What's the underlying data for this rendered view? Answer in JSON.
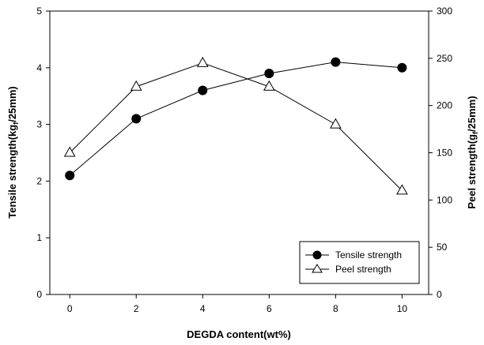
{
  "chart_data": {
    "type": "line",
    "xlabel": "DEGDA content(wt%)",
    "ylabel_left": {
      "main": "Tensile strength(kg",
      "sub": "f",
      "tail": "/25mm)"
    },
    "ylabel_right": {
      "main": "Peel strength(g",
      "sub": "f",
      "tail": "/25mm)"
    },
    "x_ticks": [
      0,
      2,
      4,
      6,
      8,
      10
    ],
    "y_left_ticks": [
      0,
      1,
      2,
      3,
      4,
      5
    ],
    "y_right_ticks": [
      0,
      50,
      100,
      150,
      200,
      250,
      300
    ],
    "xlim": [
      -0.6,
      10.8
    ],
    "ylim_left": [
      0,
      5
    ],
    "ylim_right": [
      0,
      300
    ],
    "grid": false,
    "legend_position": "bottom-right",
    "series": [
      {
        "name": "Tensile strength",
        "axis": "left",
        "marker": "filled-circle",
        "x": [
          0,
          2,
          4,
          6,
          8,
          10
        ],
        "values": [
          2.1,
          3.1,
          3.6,
          3.9,
          4.1,
          4.0
        ]
      },
      {
        "name": "Peel strength",
        "axis": "right",
        "marker": "open-triangle",
        "x": [
          0,
          2,
          4,
          6,
          8,
          10
        ],
        "values": [
          150,
          220,
          245,
          220,
          180,
          110
        ]
      }
    ]
  }
}
